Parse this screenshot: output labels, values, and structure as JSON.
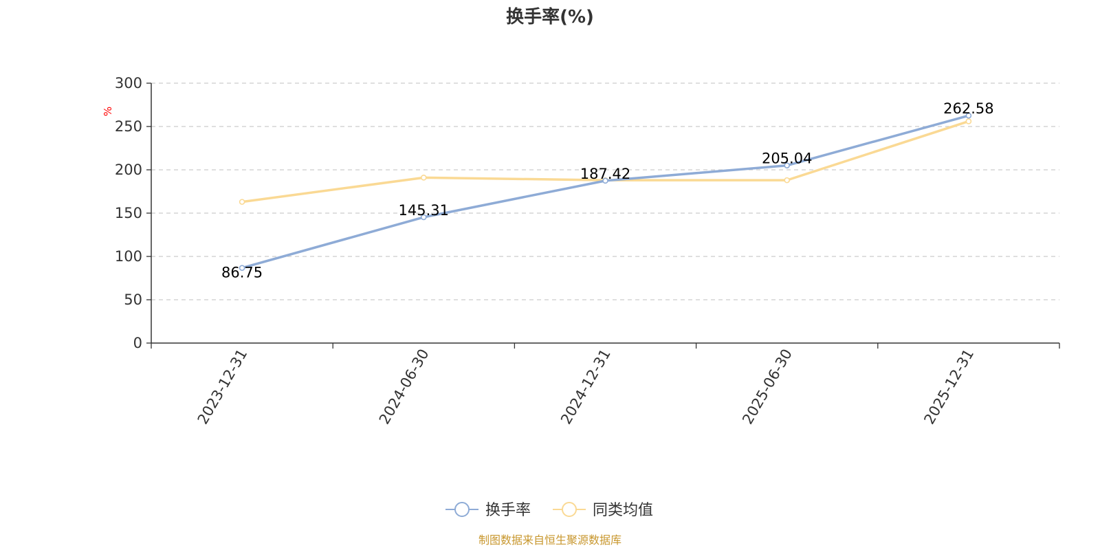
{
  "chart_data": {
    "type": "line",
    "title": "换手率(%)",
    "ylabel": "%",
    "categories": [
      "2023-12-31",
      "2024-06-30",
      "2024-12-31",
      "2025-06-30",
      "2025-12-31"
    ],
    "ylim": [
      0,
      300
    ],
    "yticks": [
      0,
      50,
      100,
      150,
      200,
      250,
      300
    ],
    "grid": true,
    "legend_position": "bottom",
    "series": [
      {
        "name": "换手率",
        "color": "#8eabd6",
        "values": [
          86.75,
          145.31,
          187.42,
          205.04,
          262.58
        ],
        "data_labels": [
          "86.75",
          "145.31",
          "187.42",
          "205.04",
          "262.58"
        ]
      },
      {
        "name": "同类均值",
        "color": "#fad994",
        "values": [
          163,
          191,
          188,
          188,
          256
        ]
      }
    ]
  },
  "colors": {
    "unit_label": "#ff0000",
    "source_text": "#c8972e",
    "axis": "#333333",
    "grid": "#cccccc"
  },
  "footer": {
    "source": "制图数据来自恒生聚源数据库"
  }
}
